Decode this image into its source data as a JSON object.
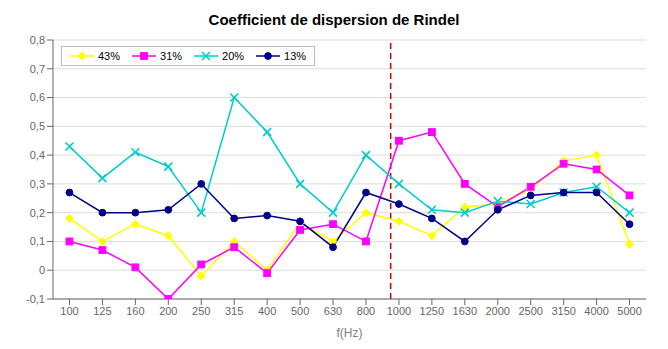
{
  "chart_data": {
    "type": "line",
    "title": "Coefficient de dispersion de Rindel",
    "xlabel": "f(Hz)",
    "categories": [
      "100",
      "125",
      "160",
      "200",
      "250",
      "315",
      "400",
      "500",
      "630",
      "800",
      "1000",
      "1250",
      "1630",
      "2000",
      "2500",
      "3150",
      "4000",
      "5000"
    ],
    "series": [
      {
        "name": "43%",
        "color": "#ffff00",
        "marker": "diamond",
        "values": [
          0.18,
          0.1,
          0.16,
          0.12,
          -0.02,
          0.1,
          0.0,
          0.165,
          0.1,
          0.2,
          0.17,
          0.12,
          0.22,
          0.23,
          0.28,
          0.38,
          0.4,
          0.09
        ]
      },
      {
        "name": "31%",
        "color": "#ff00ff",
        "marker": "square",
        "values": [
          0.1,
          0.07,
          0.01,
          -0.1,
          0.02,
          0.08,
          -0.01,
          0.14,
          0.16,
          0.1,
          0.45,
          0.48,
          0.3,
          0.22,
          0.29,
          0.37,
          0.35,
          0.26
        ]
      },
      {
        "name": "20%",
        "color": "#00cccc",
        "marker": "x",
        "values": [
          0.43,
          0.32,
          0.41,
          0.36,
          0.2,
          0.6,
          0.48,
          0.3,
          0.2,
          0.4,
          0.3,
          0.21,
          0.2,
          0.24,
          0.23,
          0.27,
          0.29,
          0.2
        ]
      },
      {
        "name": "13%",
        "color": "#00008b",
        "marker": "circle",
        "values": [
          0.27,
          0.2,
          0.2,
          0.21,
          0.3,
          0.18,
          0.19,
          0.17,
          0.08,
          0.27,
          0.23,
          0.18,
          0.1,
          0.21,
          0.26,
          0.27,
          0.27,
          0.16
        ]
      }
    ],
    "ylim": [
      -0.1,
      0.8
    ],
    "yticks": [
      {
        "value": -0.1,
        "label": "-0,1"
      },
      0,
      {
        "value": 0.1,
        "label": "0,1"
      },
      {
        "value": 0.2,
        "label": "0,2"
      },
      {
        "value": 0.3,
        "label": "0,3"
      },
      {
        "value": 0.4,
        "label": "0,4"
      },
      {
        "value": 0.5,
        "label": "0,5"
      },
      {
        "value": 0.6,
        "label": "0,6"
      },
      {
        "value": 0.7,
        "label": "0,7"
      },
      {
        "value": 0.8,
        "label": "0,8"
      }
    ],
    "grid": true,
    "legend": "upper left",
    "reference_lines": [
      {
        "x": 950,
        "color": "#cc0000",
        "line_style": "dashed"
      }
    ]
  }
}
